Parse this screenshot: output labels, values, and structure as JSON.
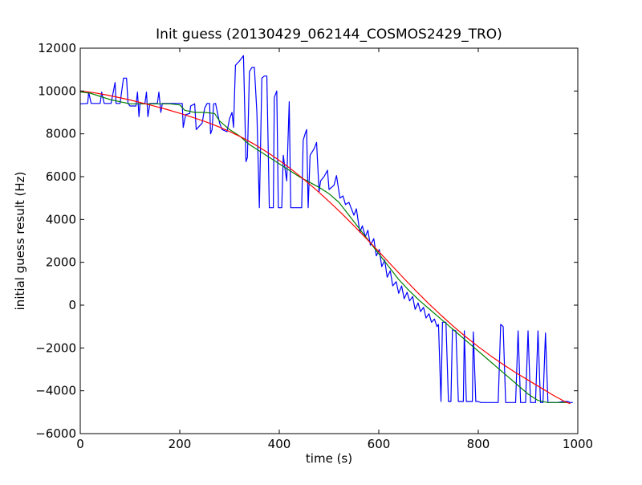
{
  "chart_data": {
    "type": "line",
    "title": "Init guess (20130429_062144_COSMOS2429_TRO)",
    "xlabel": "time (s)",
    "ylabel": "initial guess result (Hz)",
    "xlim": [
      0,
      1000
    ],
    "ylim": [
      -6000,
      12000
    ],
    "xticks": [
      0,
      200,
      400,
      600,
      800,
      1000
    ],
    "yticks": [
      -6000,
      -4000,
      -2000,
      0,
      2000,
      4000,
      6000,
      8000,
      10000,
      12000
    ],
    "grid": false,
    "legend": "none",
    "series": [
      {
        "color": "#0000ff",
        "points": [
          [
            0,
            9400
          ],
          [
            15,
            9420
          ],
          [
            17,
            9950
          ],
          [
            22,
            9420
          ],
          [
            40,
            9420
          ],
          [
            43,
            9950
          ],
          [
            48,
            9420
          ],
          [
            62,
            9420
          ],
          [
            70,
            10400
          ],
          [
            72,
            9420
          ],
          [
            80,
            9420
          ],
          [
            87,
            10600
          ],
          [
            93,
            10600
          ],
          [
            96,
            9420
          ],
          [
            100,
            9300
          ],
          [
            112,
            9300
          ],
          [
            115,
            9950
          ],
          [
            118,
            8800
          ],
          [
            120,
            9420
          ],
          [
            130,
            9420
          ],
          [
            133,
            9950
          ],
          [
            136,
            8800
          ],
          [
            140,
            9420
          ],
          [
            155,
            9420
          ],
          [
            158,
            9950
          ],
          [
            162,
            9000
          ],
          [
            165,
            9420
          ],
          [
            185,
            9420
          ],
          [
            188,
            9420
          ],
          [
            200,
            9420
          ],
          [
            205,
            9420
          ],
          [
            207,
            8300
          ],
          [
            212,
            8900
          ],
          [
            220,
            8950
          ],
          [
            222,
            9300
          ],
          [
            230,
            9400
          ],
          [
            233,
            8200
          ],
          [
            245,
            8500
          ],
          [
            250,
            9200
          ],
          [
            255,
            9420
          ],
          [
            260,
            9420
          ],
          [
            262,
            8000
          ],
          [
            265,
            8200
          ],
          [
            268,
            9400
          ],
          [
            272,
            9420
          ],
          [
            280,
            8500
          ],
          [
            285,
            8200
          ],
          [
            295,
            8100
          ],
          [
            300,
            8700
          ],
          [
            305,
            9000
          ],
          [
            308,
            8300
          ],
          [
            312,
            11200
          ],
          [
            320,
            11400
          ],
          [
            328,
            11650
          ],
          [
            333,
            6700
          ],
          [
            336,
            6900
          ],
          [
            340,
            10900
          ],
          [
            345,
            11100
          ],
          [
            350,
            11100
          ],
          [
            355,
            9000
          ],
          [
            360,
            4550
          ],
          [
            365,
            10600
          ],
          [
            370,
            10700
          ],
          [
            375,
            10700
          ],
          [
            380,
            4550
          ],
          [
            388,
            4550
          ],
          [
            390,
            9700
          ],
          [
            395,
            10000
          ],
          [
            398,
            4550
          ],
          [
            405,
            4550
          ],
          [
            408,
            7000
          ],
          [
            412,
            6300
          ],
          [
            415,
            5800
          ],
          [
            420,
            9500
          ],
          [
            423,
            4550
          ],
          [
            430,
            4550
          ],
          [
            440,
            4550
          ],
          [
            445,
            4550
          ],
          [
            448,
            7700
          ],
          [
            452,
            8000
          ],
          [
            455,
            8200
          ],
          [
            458,
            4550
          ],
          [
            462,
            7000
          ],
          [
            470,
            7300
          ],
          [
            475,
            7600
          ],
          [
            480,
            5300
          ],
          [
            483,
            5800
          ],
          [
            490,
            6000
          ],
          [
            497,
            6300
          ],
          [
            500,
            5400
          ],
          [
            510,
            5600
          ],
          [
            515,
            6050
          ],
          [
            522,
            5000
          ],
          [
            528,
            5100
          ],
          [
            533,
            4700
          ],
          [
            540,
            4800
          ],
          [
            550,
            4200
          ],
          [
            555,
            4500
          ],
          [
            562,
            3400
          ],
          [
            567,
            3700
          ],
          [
            573,
            3200
          ],
          [
            578,
            3500
          ],
          [
            583,
            2800
          ],
          [
            590,
            3100
          ],
          [
            595,
            2300
          ],
          [
            601,
            2600
          ],
          [
            606,
            1800
          ],
          [
            612,
            2100
          ],
          [
            617,
            1300
          ],
          [
            623,
            1600
          ],
          [
            628,
            900
          ],
          [
            635,
            1100
          ],
          [
            640,
            550
          ],
          [
            646,
            900
          ],
          [
            651,
            300
          ],
          [
            657,
            600
          ],
          [
            662,
            200
          ],
          [
            668,
            400
          ],
          [
            673,
            -200
          ],
          [
            679,
            100
          ],
          [
            684,
            -300
          ],
          [
            690,
            -100
          ],
          [
            695,
            -600
          ],
          [
            701,
            -400
          ],
          [
            706,
            -800
          ],
          [
            712,
            -650
          ],
          [
            717,
            -1000
          ],
          [
            720,
            -900
          ],
          [
            725,
            -4500
          ],
          [
            728,
            -800
          ],
          [
            735,
            -800
          ],
          [
            740,
            -4500
          ],
          [
            745,
            -4500
          ],
          [
            748,
            -1150
          ],
          [
            755,
            -1200
          ],
          [
            760,
            -4500
          ],
          [
            770,
            -4500
          ],
          [
            772,
            -1200
          ],
          [
            776,
            -4500
          ],
          [
            788,
            -4500
          ],
          [
            790,
            -1250
          ],
          [
            795,
            -4500
          ],
          [
            800,
            -4500
          ],
          [
            805,
            -4550
          ],
          [
            830,
            -4550
          ],
          [
            840,
            -4550
          ],
          [
            845,
            -900
          ],
          [
            850,
            -1000
          ],
          [
            855,
            -4550
          ],
          [
            860,
            -4550
          ],
          [
            870,
            -4550
          ],
          [
            875,
            -4550
          ],
          [
            880,
            -1200
          ],
          [
            885,
            -4550
          ],
          [
            890,
            -4550
          ],
          [
            895,
            -4550
          ],
          [
            900,
            -1200
          ],
          [
            905,
            -4550
          ],
          [
            910,
            -4550
          ],
          [
            915,
            -4550
          ],
          [
            920,
            -1200
          ],
          [
            925,
            -4550
          ],
          [
            930,
            -4550
          ],
          [
            935,
            -1300
          ],
          [
            940,
            -4550
          ],
          [
            950,
            -4550
          ],
          [
            960,
            -4550
          ],
          [
            970,
            -4500
          ],
          [
            980,
            -4500
          ],
          [
            985,
            -4550
          ],
          [
            990,
            -4550
          ]
        ]
      },
      {
        "color": "#008000",
        "points": [
          [
            0,
            9950
          ],
          [
            20,
            9900
          ],
          [
            40,
            9750
          ],
          [
            60,
            9600
          ],
          [
            80,
            9500
          ],
          [
            100,
            9400
          ],
          [
            120,
            9400
          ],
          [
            140,
            9400
          ],
          [
            160,
            9400
          ],
          [
            180,
            9400
          ],
          [
            200,
            9350
          ],
          [
            210,
            9100
          ],
          [
            230,
            9000
          ],
          [
            250,
            9000
          ],
          [
            270,
            8950
          ],
          [
            280,
            8600
          ],
          [
            300,
            8200
          ],
          [
            320,
            7900
          ],
          [
            340,
            7500
          ],
          [
            360,
            7200
          ],
          [
            380,
            6900
          ],
          [
            400,
            6600
          ],
          [
            420,
            6300
          ],
          [
            440,
            6000
          ],
          [
            460,
            5750
          ],
          [
            480,
            5500
          ],
          [
            500,
            5200
          ],
          [
            520,
            4800
          ],
          [
            540,
            4200
          ],
          [
            560,
            3600
          ],
          [
            580,
            3000
          ],
          [
            600,
            2400
          ],
          [
            620,
            1800
          ],
          [
            640,
            1200
          ],
          [
            660,
            700
          ],
          [
            680,
            250
          ],
          [
            700,
            -150
          ],
          [
            720,
            -550
          ],
          [
            740,
            -950
          ],
          [
            760,
            -1350
          ],
          [
            780,
            -1750
          ],
          [
            800,
            -2150
          ],
          [
            820,
            -2550
          ],
          [
            840,
            -2950
          ],
          [
            860,
            -3350
          ],
          [
            880,
            -3750
          ],
          [
            900,
            -4150
          ],
          [
            920,
            -4450
          ],
          [
            940,
            -4550
          ],
          [
            960,
            -4550
          ],
          [
            980,
            -4550
          ]
        ]
      },
      {
        "color": "#ff0000",
        "points": [
          [
            0,
            10000
          ],
          [
            25,
            9930
          ],
          [
            50,
            9830
          ],
          [
            75,
            9710
          ],
          [
            100,
            9580
          ],
          [
            125,
            9440
          ],
          [
            150,
            9290
          ],
          [
            175,
            9130
          ],
          [
            200,
            8960
          ],
          [
            225,
            8780
          ],
          [
            250,
            8580
          ],
          [
            275,
            8360
          ],
          [
            300,
            8110
          ],
          [
            325,
            7830
          ],
          [
            350,
            7510
          ],
          [
            375,
            7150
          ],
          [
            400,
            6760
          ],
          [
            425,
            6330
          ],
          [
            450,
            5860
          ],
          [
            475,
            5370
          ],
          [
            500,
            4840
          ],
          [
            525,
            4290
          ],
          [
            550,
            3710
          ],
          [
            575,
            3110
          ],
          [
            600,
            2500
          ],
          [
            625,
            1880
          ],
          [
            650,
            1260
          ],
          [
            675,
            660
          ],
          [
            700,
            80
          ],
          [
            725,
            -470
          ],
          [
            750,
            -990
          ],
          [
            775,
            -1480
          ],
          [
            800,
            -1940
          ],
          [
            825,
            -2370
          ],
          [
            850,
            -2770
          ],
          [
            875,
            -3150
          ],
          [
            900,
            -3500
          ],
          [
            925,
            -3850
          ],
          [
            950,
            -4200
          ],
          [
            975,
            -4520
          ],
          [
            985,
            -4600
          ]
        ]
      }
    ]
  }
}
